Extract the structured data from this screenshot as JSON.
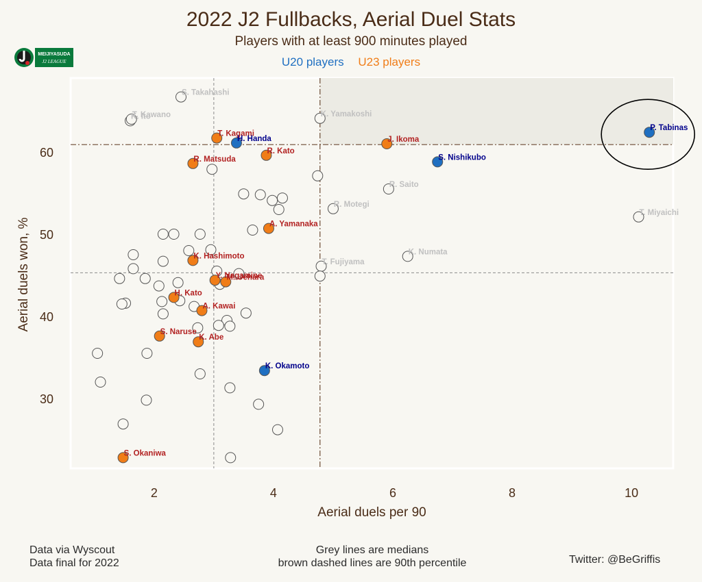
{
  "title": "2022 J2 Fullbacks, Aerial Duel Stats",
  "subtitle": "Players with at least 900 minutes played",
  "legend": {
    "u20_label": "U20 players",
    "u23_label": "U23 players",
    "u20_color": "#1f6fc1",
    "u23_color": "#f07d18"
  },
  "logo": {
    "line1": "MEIJIYASUDA",
    "line2": "J2 LEAGUE"
  },
  "footer": {
    "source_line1": "Data via Wyscout",
    "source_line2": "Data final for 2022",
    "note_line1": "Grey lines are medians",
    "note_line2": "brown dashed lines are 90th percentile",
    "credit": "Twitter: @BeGriffis"
  },
  "chart_data": {
    "type": "scatter",
    "title": "2022 J2 Fullbacks, Aerial Duel Stats",
    "xlabel": "Aerial duels per 90",
    "ylabel": "Aerial duels won, %",
    "xlim": [
      0.6,
      10.7
    ],
    "ylim": [
      21.5,
      69.0
    ],
    "xticks": [
      2,
      4,
      6,
      8,
      10
    ],
    "yticks": [
      30,
      40,
      50,
      60
    ],
    "median_x": 3.0,
    "median_y": 45.3,
    "p90_x": 4.78,
    "p90_y": 60.9,
    "highlight_region": "above 90th percentile on both axes",
    "circled_player": "P. Tabinas",
    "colors": {
      "u20": "#1f6fc1",
      "u23": "#f07d18",
      "other": "#f8f7f2",
      "label_u20": "#00008b",
      "label_u23": "#b22222",
      "label_other": "#c0c0c0"
    },
    "points": [
      {
        "name": "S. Takahashi",
        "x": 2.45,
        "y": 66.7,
        "group": "other"
      },
      {
        "name": "K. Ito",
        "x": 1.6,
        "y": 63.8,
        "group": "other"
      },
      {
        "name": "T. Kawano",
        "x": 1.62,
        "y": 64.0,
        "group": "other"
      },
      {
        "name": "K. Yamakoshi",
        "x": 4.78,
        "y": 64.1,
        "group": "other"
      },
      {
        "name": "P. Tabinas",
        "x": 10.3,
        "y": 62.4,
        "group": "u20"
      },
      {
        "name": "T. Kagami",
        "x": 3.05,
        "y": 61.7,
        "group": "u23"
      },
      {
        "name": "H. Handa",
        "x": 3.38,
        "y": 61.1,
        "group": "u20"
      },
      {
        "name": "J. Ikoma",
        "x": 5.9,
        "y": 61.0,
        "group": "u23"
      },
      {
        "name": "R. Kato",
        "x": 3.88,
        "y": 59.6,
        "group": "u23"
      },
      {
        "name": "S. Nishikubo",
        "x": 6.75,
        "y": 58.8,
        "group": "u20"
      },
      {
        "name": "R. Matsuda",
        "x": 2.65,
        "y": 58.6,
        "group": "u23"
      },
      {
        "name": null,
        "x": 2.97,
        "y": 57.9,
        "group": "other"
      },
      {
        "name": null,
        "x": 4.74,
        "y": 57.1,
        "group": "other"
      },
      {
        "name": "R. Saito",
        "x": 5.93,
        "y": 55.5,
        "group": "other"
      },
      {
        "name": null,
        "x": 3.5,
        "y": 54.9,
        "group": "other"
      },
      {
        "name": null,
        "x": 3.78,
        "y": 54.8,
        "group": "other"
      },
      {
        "name": null,
        "x": 4.15,
        "y": 54.4,
        "group": "other"
      },
      {
        "name": null,
        "x": 3.98,
        "y": 54.1,
        "group": "other"
      },
      {
        "name": "R. Motegi",
        "x": 5.0,
        "y": 53.1,
        "group": "other"
      },
      {
        "name": null,
        "x": 4.09,
        "y": 53.0,
        "group": "other"
      },
      {
        "name": "T. Miyaichi",
        "x": 10.12,
        "y": 52.1,
        "group": "other"
      },
      {
        "name": "A. Yamanaka",
        "x": 3.92,
        "y": 50.7,
        "group": "u23"
      },
      {
        "name": null,
        "x": 3.65,
        "y": 50.5,
        "group": "other"
      },
      {
        "name": null,
        "x": 2.15,
        "y": 50.0,
        "group": "other"
      },
      {
        "name": null,
        "x": 2.33,
        "y": 50.0,
        "group": "other"
      },
      {
        "name": null,
        "x": 2.77,
        "y": 50.0,
        "group": "other"
      },
      {
        "name": null,
        "x": 2.58,
        "y": 48.0,
        "group": "other"
      },
      {
        "name": null,
        "x": 2.95,
        "y": 48.1,
        "group": "other"
      },
      {
        "name": null,
        "x": 1.65,
        "y": 47.5,
        "group": "other"
      },
      {
        "name": "K. Numata",
        "x": 6.25,
        "y": 47.3,
        "group": "other"
      },
      {
        "name": "K. Hashimoto",
        "x": 2.65,
        "y": 46.8,
        "group": "u23"
      },
      {
        "name": null,
        "x": 2.15,
        "y": 46.7,
        "group": "other"
      },
      {
        "name": "T. Fujiyama",
        "x": 4.8,
        "y": 46.1,
        "group": "other"
      },
      {
        "name": null,
        "x": 1.65,
        "y": 45.8,
        "group": "other"
      },
      {
        "name": null,
        "x": 3.05,
        "y": 45.5,
        "group": "other"
      },
      {
        "name": null,
        "x": 3.42,
        "y": 45.2,
        "group": "other"
      },
      {
        "name": null,
        "x": 4.78,
        "y": 44.9,
        "group": "other"
      },
      {
        "name": null,
        "x": 1.42,
        "y": 44.6,
        "group": "other"
      },
      {
        "name": null,
        "x": 1.85,
        "y": 44.6,
        "group": "other"
      },
      {
        "name": "Y. Nagamine",
        "x": 3.02,
        "y": 44.4,
        "group": "u23"
      },
      {
        "name": "M. Uehara",
        "x": 3.2,
        "y": 44.2,
        "group": "u23"
      },
      {
        "name": null,
        "x": 2.4,
        "y": 44.1,
        "group": "other"
      },
      {
        "name": null,
        "x": 3.1,
        "y": 43.9,
        "group": "other"
      },
      {
        "name": null,
        "x": 2.08,
        "y": 43.7,
        "group": "other"
      },
      {
        "name": "H. Kato",
        "x": 2.33,
        "y": 42.3,
        "group": "u23"
      },
      {
        "name": null,
        "x": 2.43,
        "y": 41.9,
        "group": "other"
      },
      {
        "name": null,
        "x": 2.13,
        "y": 41.8,
        "group": "other"
      },
      {
        "name": null,
        "x": 1.52,
        "y": 41.6,
        "group": "other"
      },
      {
        "name": null,
        "x": 1.46,
        "y": 41.5,
        "group": "other"
      },
      {
        "name": null,
        "x": 2.67,
        "y": 41.2,
        "group": "other"
      },
      {
        "name": "A. Kawai",
        "x": 2.8,
        "y": 40.7,
        "group": "u23"
      },
      {
        "name": null,
        "x": 3.54,
        "y": 40.4,
        "group": "other"
      },
      {
        "name": null,
        "x": 2.15,
        "y": 40.3,
        "group": "other"
      },
      {
        "name": null,
        "x": 3.22,
        "y": 39.5,
        "group": "other"
      },
      {
        "name": null,
        "x": 3.08,
        "y": 38.9,
        "group": "other"
      },
      {
        "name": null,
        "x": 3.27,
        "y": 38.8,
        "group": "other"
      },
      {
        "name": null,
        "x": 2.73,
        "y": 38.6,
        "group": "other"
      },
      {
        "name": "S. Naruse",
        "x": 2.09,
        "y": 37.6,
        "group": "u23"
      },
      {
        "name": "K. Abe",
        "x": 2.74,
        "y": 36.9,
        "group": "u23"
      },
      {
        "name": null,
        "x": 1.05,
        "y": 35.5,
        "group": "other"
      },
      {
        "name": null,
        "x": 1.88,
        "y": 35.5,
        "group": "other"
      },
      {
        "name": "K. Okamoto",
        "x": 3.85,
        "y": 33.4,
        "group": "u20"
      },
      {
        "name": null,
        "x": 2.77,
        "y": 33.0,
        "group": "other"
      },
      {
        "name": null,
        "x": 1.1,
        "y": 32.0,
        "group": "other"
      },
      {
        "name": null,
        "x": 3.27,
        "y": 31.3,
        "group": "other"
      },
      {
        "name": null,
        "x": 1.87,
        "y": 29.8,
        "group": "other"
      },
      {
        "name": null,
        "x": 3.75,
        "y": 29.3,
        "group": "other"
      },
      {
        "name": null,
        "x": 1.48,
        "y": 26.9,
        "group": "other"
      },
      {
        "name": null,
        "x": 4.07,
        "y": 26.2,
        "group": "other"
      },
      {
        "name": "S. Okaniwa",
        "x": 1.48,
        "y": 22.8,
        "group": "u23"
      },
      {
        "name": null,
        "x": 3.28,
        "y": 22.8,
        "group": "other"
      }
    ]
  }
}
